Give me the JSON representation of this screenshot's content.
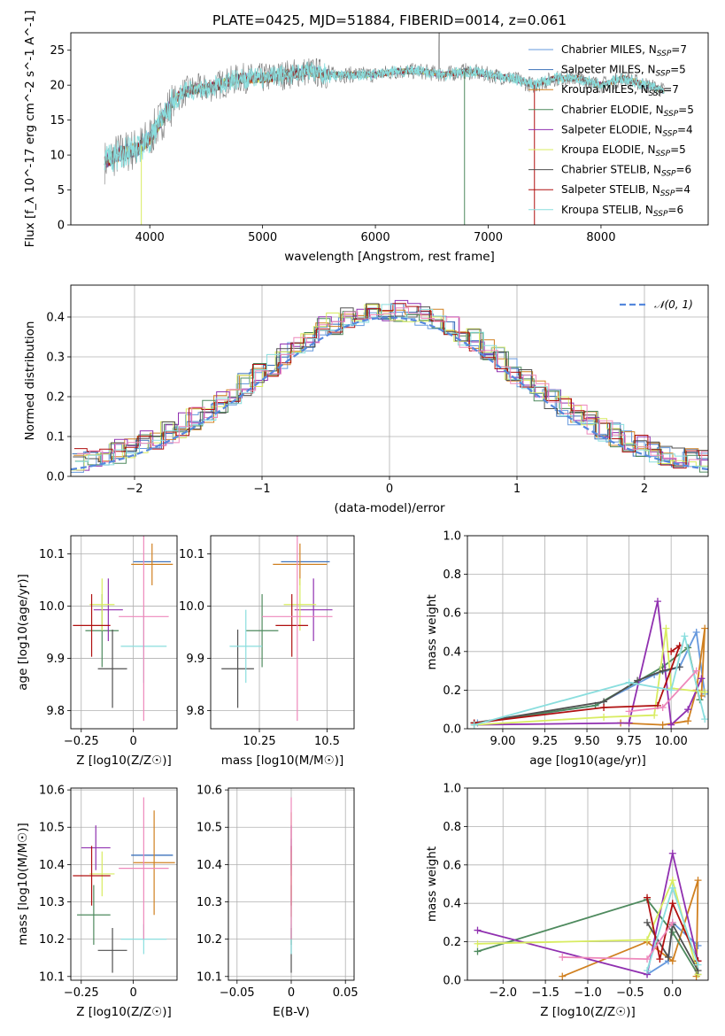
{
  "figure": {
    "title": "PLATE=0425, MJD=51884, FIBERID=0014, z=0.061"
  },
  "models": [
    {
      "name": "Chabrier MILES",
      "nssp": 7,
      "color": "#6699dd"
    },
    {
      "name": "Salpeter MILES",
      "nssp": 5,
      "color": "#3a6fb8"
    },
    {
      "name": "Kroupa MILES",
      "nssp": 7,
      "color": "#d08020"
    },
    {
      "name": "Chabrier ELODIE",
      "nssp": 5,
      "color": "#4e8a5e"
    },
    {
      "name": "Salpeter ELODIE",
      "nssp": 4,
      "color": "#9030b0"
    },
    {
      "name": "Kroupa ELODIE",
      "nssp": 5,
      "color": "#d8ec60"
    },
    {
      "name": "Chabrier STELIB",
      "nssp": 6,
      "color": "#505050"
    },
    {
      "name": "Salpeter STELIB",
      "nssp": 4,
      "color": "#b01010"
    },
    {
      "name": "Kroupa STELIB",
      "nssp": 6,
      "color": "#8adede"
    }
  ],
  "extra_colors": {
    "pink": "#ee88bb",
    "normal_curve": "#5588dd"
  },
  "chart_data": [
    {
      "id": "spectrum",
      "type": "line",
      "title": "PLATE=0425, MJD=51884, FIBERID=0014, z=0.061",
      "xlabel": "wavelength [Angstrom, rest frame]",
      "ylabel": "Flux [f_λ 10^-17 erg cm^-2 s^-1 A^-1]",
      "xlim": [
        3300,
        8950
      ],
      "ylim": [
        0,
        27.5
      ],
      "xticks": [
        4000,
        5000,
        6000,
        7000,
        8000
      ],
      "yticks": [
        0,
        5,
        10,
        15,
        20,
        25
      ],
      "grid": false,
      "legend": "top-right",
      "continuum": {
        "x": [
          3600,
          3700,
          3800,
          3900,
          4000,
          4100,
          4200,
          4300,
          4400,
          4500,
          4600,
          4800,
          5000,
          5200,
          5400,
          5600,
          5800,
          6000,
          6200,
          6400,
          6600,
          6800,
          7000,
          7200,
          7400,
          7600,
          7800,
          8000,
          8200,
          8400,
          8600
        ],
        "y": [
          9,
          10,
          10.5,
          11,
          12.5,
          15,
          17.5,
          19,
          19.5,
          19.5,
          20,
          21,
          21,
          21.5,
          22,
          21.5,
          21.5,
          21.5,
          22,
          22,
          21.5,
          22,
          21.5,
          21,
          20,
          21,
          21,
          20,
          21,
          20,
          19
        ]
      }
    },
    {
      "id": "residuals",
      "type": "line",
      "xlabel": "(data-model)/error",
      "ylabel": "Normed distribution",
      "xlim": [
        -2.5,
        2.5
      ],
      "ylim": [
        0,
        0.48
      ],
      "xticks": [
        -2,
        -1,
        0,
        1,
        2
      ],
      "yticks": [
        0.0,
        0.1,
        0.2,
        0.3,
        0.4
      ],
      "grid": true,
      "legend": "top-right",
      "legend_entry": "𝒩(0, 1)",
      "normal_curve": {
        "mu": 0,
        "sigma": 1
      }
    },
    {
      "id": "age_vs_Z",
      "type": "scatter",
      "xlabel": "Z [log10(Z/Z☉)]",
      "ylabel": "age [log10(age/yr)]",
      "xlim": [
        -0.3,
        0.21
      ],
      "ylim": [
        9.765,
        10.135
      ],
      "xticks": [
        -0.25,
        0.0
      ],
      "yticks": [
        9.8,
        9.9,
        10.0,
        10.1
      ],
      "grid": true,
      "points": [
        {
          "m": 0,
          "x": 0.09,
          "y": 10.085,
          "xe": 0.09,
          "ye": 0.0
        },
        {
          "m": 1,
          "x": 0.09,
          "y": 10.085,
          "xe": 0.09,
          "ye": 0.0
        },
        {
          "m": 2,
          "x": 0.09,
          "y": 10.08,
          "xe": 0.1,
          "ye": 0.04
        },
        {
          "m": 3,
          "x": -0.15,
          "y": 9.953,
          "xe": 0.08,
          "ye": 0.07
        },
        {
          "m": 4,
          "x": -0.12,
          "y": 9.993,
          "xe": 0.07,
          "ye": 0.06
        },
        {
          "m": 5,
          "x": -0.15,
          "y": 10.003,
          "xe": 0.06,
          "ye": 0.05
        },
        {
          "m": 6,
          "x": -0.1,
          "y": 9.88,
          "xe": 0.07,
          "ye": 0.075
        },
        {
          "m": 7,
          "x": -0.2,
          "y": 9.963,
          "xe": 0.09,
          "ye": 0.06
        },
        {
          "m": 8,
          "x": 0.05,
          "y": 9.923,
          "xe": 0.11,
          "ye": 0.07
        },
        {
          "m": "pink",
          "x": 0.05,
          "y": 9.98,
          "xe": 0.12,
          "ye": 0.2
        }
      ]
    },
    {
      "id": "age_vs_mass",
      "type": "scatter",
      "xlabel": "mass [log10(M/M☉)]",
      "ylabel": "",
      "xlim": [
        10.07,
        10.6
      ],
      "ylim": [
        9.765,
        10.135
      ],
      "xticks": [
        10.25,
        10.5
      ],
      "yticks": [
        9.8,
        9.9,
        10.0,
        10.1
      ],
      "grid": true,
      "points": [
        {
          "m": 0,
          "x": 10.42,
          "y": 10.085,
          "xe": 0.09,
          "ye": 0.0
        },
        {
          "m": 1,
          "x": 10.42,
          "y": 10.085,
          "xe": 0.09,
          "ye": 0.0
        },
        {
          "m": 2,
          "x": 10.4,
          "y": 10.08,
          "xe": 0.1,
          "ye": 0.04
        },
        {
          "m": 3,
          "x": 10.26,
          "y": 9.953,
          "xe": 0.06,
          "ye": 0.07
        },
        {
          "m": 4,
          "x": 10.45,
          "y": 9.993,
          "xe": 0.07,
          "ye": 0.06
        },
        {
          "m": 5,
          "x": 10.4,
          "y": 10.003,
          "xe": 0.06,
          "ye": 0.05
        },
        {
          "m": 6,
          "x": 10.17,
          "y": 9.88,
          "xe": 0.06,
          "ye": 0.075
        },
        {
          "m": 7,
          "x": 10.37,
          "y": 9.963,
          "xe": 0.06,
          "ye": 0.06
        },
        {
          "m": 8,
          "x": 10.2,
          "y": 9.923,
          "xe": 0.06,
          "ye": 0.07
        },
        {
          "m": "pink",
          "x": 10.39,
          "y": 9.98,
          "xe": 0.13,
          "ye": 0.2
        }
      ]
    },
    {
      "id": "weight_vs_age",
      "type": "line",
      "xlabel": "age [log10(age/yr)]",
      "ylabel": "mass weight",
      "xlim": [
        8.79,
        10.22
      ],
      "ylim": [
        0,
        1.0
      ],
      "xticks": [
        9.0,
        9.25,
        9.5,
        9.75,
        10.0
      ],
      "yticks": [
        0.0,
        0.2,
        0.4,
        0.6,
        0.8,
        1.0
      ],
      "grid": true,
      "series": [
        {
          "m": 0,
          "x": [
            8.85,
            9.55,
            9.9,
            10.05,
            10.15,
            10.2
          ],
          "y": [
            0.03,
            0.12,
            0.28,
            0.32,
            0.5,
            0.18
          ]
        },
        {
          "m": 2,
          "x": [
            9.7,
            9.95,
            10.1,
            10.15,
            10.2,
            10.18
          ],
          "y": [
            0.03,
            0.02,
            0.04,
            0.2,
            0.52,
            0.17
          ]
        },
        {
          "m": 3,
          "x": [
            8.83,
            9.55,
            9.95,
            10.1,
            10.17
          ],
          "y": [
            0.03,
            0.12,
            0.32,
            0.42,
            0.15
          ]
        },
        {
          "m": 4,
          "x": [
            8.83,
            9.75,
            9.92,
            10.0,
            10.1,
            10.18
          ],
          "y": [
            0.02,
            0.03,
            0.66,
            0.02,
            0.1,
            0.26
          ]
        },
        {
          "m": 5,
          "x": [
            8.83,
            9.6,
            9.9,
            9.97,
            10.0,
            10.2
          ],
          "y": [
            0.02,
            0.06,
            0.07,
            0.52,
            0.21,
            0.19
          ]
        },
        {
          "m": 6,
          "x": [
            8.83,
            9.6,
            9.8,
            9.95,
            10.05
          ],
          "y": [
            0.03,
            0.14,
            0.25,
            0.3,
            0.32
          ]
        },
        {
          "m": 7,
          "x": [
            8.83,
            9.6,
            9.92,
            10.05,
            10.0
          ],
          "y": [
            0.03,
            0.11,
            0.12,
            0.43,
            0.4
          ]
        },
        {
          "m": 8,
          "x": [
            8.83,
            9.75,
            10.0,
            10.08,
            10.2
          ],
          "y": [
            0.02,
            0.24,
            0.2,
            0.48,
            0.05
          ]
        },
        {
          "m": "pink",
          "x": [
            9.75,
            9.95,
            10.15
          ],
          "y": [
            0.09,
            0.11,
            0.3
          ]
        }
      ]
    },
    {
      "id": "mass_vs_Z",
      "type": "scatter",
      "xlabel": "Z [log10(Z/Z☉)]",
      "ylabel": "mass [log10(M/M☉)]",
      "xlim": [
        -0.3,
        0.21
      ],
      "ylim": [
        10.09,
        10.605
      ],
      "xticks": [
        -0.25,
        0.0
      ],
      "yticks": [
        10.1,
        10.2,
        10.3,
        10.4,
        10.5,
        10.6
      ],
      "grid": true,
      "points": [
        {
          "m": 0,
          "x": 0.09,
          "y": 10.425,
          "xe": 0.1,
          "ye": 0.0
        },
        {
          "m": 1,
          "x": 0.09,
          "y": 10.425,
          "xe": 0.1,
          "ye": 0.0
        },
        {
          "m": 2,
          "x": 0.1,
          "y": 10.405,
          "xe": 0.1,
          "ye": 0.14
        },
        {
          "m": 3,
          "x": -0.19,
          "y": 10.265,
          "xe": 0.08,
          "ye": 0.08
        },
        {
          "m": 4,
          "x": -0.18,
          "y": 10.445,
          "xe": 0.07,
          "ye": 0.06
        },
        {
          "m": 5,
          "x": -0.15,
          "y": 10.375,
          "xe": 0.06,
          "ye": 0.06
        },
        {
          "m": 6,
          "x": -0.1,
          "y": 10.17,
          "xe": 0.07,
          "ye": 0.06
        },
        {
          "m": 7,
          "x": -0.2,
          "y": 10.37,
          "xe": 0.09,
          "ye": 0.08
        },
        {
          "m": 8,
          "x": 0.05,
          "y": 10.2,
          "xe": 0.11,
          "ye": 0.04
        },
        {
          "m": "pink",
          "x": 0.05,
          "y": 10.39,
          "xe": 0.12,
          "ye": 0.19
        }
      ]
    },
    {
      "id": "mass_vs_EBV",
      "type": "scatter",
      "xlabel": "E(B-V)",
      "ylabel": "",
      "xlim": [
        -0.058,
        0.058
      ],
      "ylim": [
        10.09,
        10.605
      ],
      "xticks": [
        -0.05,
        0.0,
        0.05
      ],
      "yticks": [
        10.1,
        10.2,
        10.3,
        10.4,
        10.5,
        10.6
      ],
      "grid": true,
      "points": [
        {
          "m": 0,
          "x": 0.0,
          "y": 10.42,
          "xe": 0.0,
          "ye": 0.05
        },
        {
          "m": 2,
          "x": 0.0,
          "y": 10.4,
          "xe": 0.0,
          "ye": 0.14
        },
        {
          "m": 3,
          "x": 0.0,
          "y": 10.265,
          "xe": 0.0,
          "ye": 0.08
        },
        {
          "m": 4,
          "x": 0.0,
          "y": 10.445,
          "xe": 0.0,
          "ye": 0.06
        },
        {
          "m": 5,
          "x": 0.0,
          "y": 10.375,
          "xe": 0.0,
          "ye": 0.06
        },
        {
          "m": 6,
          "x": 0.0,
          "y": 10.17,
          "xe": 0.0,
          "ye": 0.06
        },
        {
          "m": 7,
          "x": 0.0,
          "y": 10.37,
          "xe": 0.0,
          "ye": 0.08
        },
        {
          "m": 8,
          "x": 0.0,
          "y": 10.2,
          "xe": 0.0,
          "ye": 0.04
        },
        {
          "m": "pink",
          "x": 0.0,
          "y": 10.39,
          "xe": 0.0,
          "ye": 0.19
        }
      ]
    },
    {
      "id": "weight_vs_Z",
      "type": "line",
      "xlabel": "Z [log10(Z/Z☉)]",
      "ylabel": "mass weight",
      "xlim": [
        -2.42,
        0.42
      ],
      "ylim": [
        0,
        1.0
      ],
      "xticks": [
        -2.0,
        -1.5,
        -1.0,
        -0.5,
        0.0
      ],
      "yticks": [
        0.0,
        0.2,
        0.4,
        0.6,
        0.8,
        1.0
      ],
      "grid": true,
      "series": [
        {
          "m": 0,
          "x": [
            -0.3,
            -0.05,
            0.0,
            0.3
          ],
          "y": [
            0.03,
            0.1,
            0.3,
            0.18
          ]
        },
        {
          "m": 2,
          "x": [
            -1.3,
            -0.3,
            0.0,
            0.3,
            0.28
          ],
          "y": [
            0.02,
            0.2,
            0.1,
            0.52,
            0.02
          ]
        },
        {
          "m": 3,
          "x": [
            -2.3,
            -0.3,
            0.0,
            0.3
          ],
          "y": [
            0.15,
            0.42,
            0.25,
            0.03
          ]
        },
        {
          "m": 4,
          "x": [
            -2.3,
            -0.3,
            0.0,
            0.3
          ],
          "y": [
            0.26,
            0.03,
            0.66,
            0.1
          ]
        },
        {
          "m": 5,
          "x": [
            -2.3,
            -0.3,
            0.0,
            0.3
          ],
          "y": [
            0.19,
            0.21,
            0.52,
            0.03
          ]
        },
        {
          "m": 6,
          "x": [
            -0.3,
            -0.05,
            0.0,
            0.3
          ],
          "y": [
            0.3,
            0.12,
            0.29,
            0.05
          ]
        },
        {
          "m": 7,
          "x": [
            -0.3,
            -0.15,
            0.0,
            0.3
          ],
          "y": [
            0.43,
            0.11,
            0.4,
            0.1
          ]
        },
        {
          "m": 8,
          "x": [
            -0.3,
            0.0,
            0.3
          ],
          "y": [
            0.05,
            0.48,
            0.08
          ]
        },
        {
          "m": "pink",
          "x": [
            -1.3,
            -0.3,
            0.0
          ],
          "y": [
            0.12,
            0.11,
            0.3
          ]
        }
      ]
    }
  ]
}
